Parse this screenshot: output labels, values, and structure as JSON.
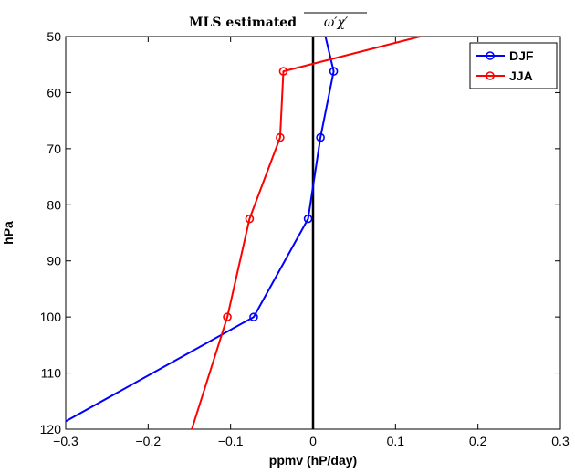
{
  "chart_data": {
    "type": "line",
    "title_text": "MLS estimated",
    "title_math": "ω′χ′",
    "xlabel": "ppmv (hP/day)",
    "ylabel": "hPa",
    "xlim": [
      -0.3,
      0.3
    ],
    "ylim": [
      50,
      120
    ],
    "y_inverted": true,
    "xticks": [
      -0.3,
      -0.2,
      -0.1,
      0,
      0.1,
      0.2,
      0.3
    ],
    "xtick_labels": [
      "−0.3",
      "−0.2",
      "−0.1",
      "0",
      "0.1",
      "0.2",
      "0.3"
    ],
    "yticks": [
      50,
      60,
      70,
      80,
      90,
      100,
      110,
      120
    ],
    "ytick_labels": [
      "50",
      "60",
      "70",
      "80",
      "90",
      "100",
      "110",
      "120"
    ],
    "grid": false,
    "legend_position": "top-right",
    "zero_line": true,
    "series": [
      {
        "name": "DJF",
        "color": "#0000ff",
        "line": [
          [
            0.015,
            50
          ],
          [
            0.025,
            56.2
          ],
          [
            0.009,
            68
          ],
          [
            -0.006,
            82.5
          ],
          [
            -0.072,
            100
          ],
          [
            -0.3,
            118.6
          ]
        ],
        "markers": [
          [
            0.025,
            56.2
          ],
          [
            0.009,
            68
          ],
          [
            -0.006,
            82.5
          ],
          [
            -0.072,
            100
          ]
        ]
      },
      {
        "name": "JJA",
        "color": "#ff0000",
        "line": [
          [
            0.13,
            50
          ],
          [
            -0.036,
            56.2
          ],
          [
            -0.04,
            68
          ],
          [
            -0.077,
            82.5
          ],
          [
            -0.104,
            100
          ],
          [
            -0.147,
            120
          ]
        ],
        "markers": [
          [
            -0.036,
            56.2
          ],
          [
            -0.04,
            68
          ],
          [
            -0.077,
            82.5
          ],
          [
            -0.104,
            100
          ]
        ]
      }
    ]
  }
}
